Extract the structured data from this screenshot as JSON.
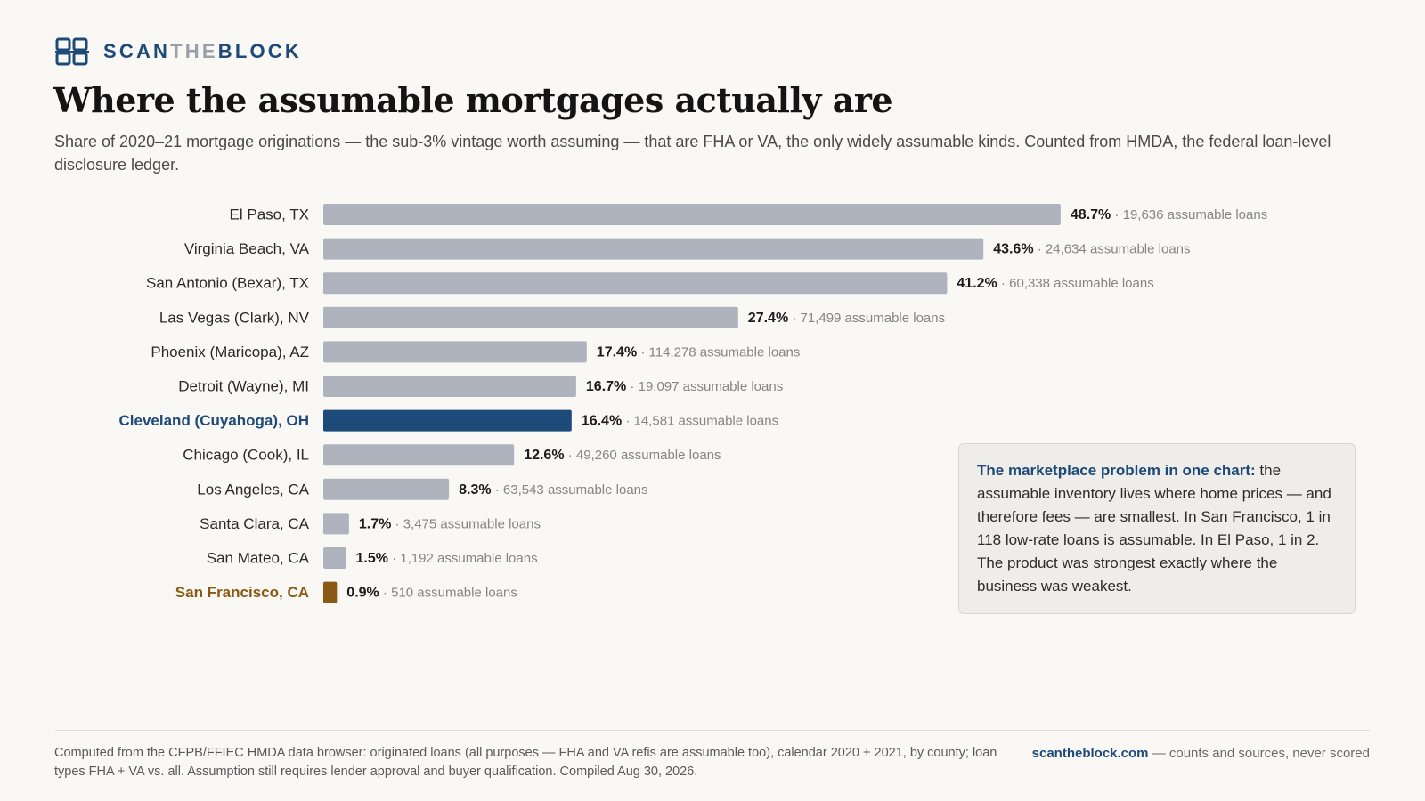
{
  "brand": {
    "part1": "SCAN",
    "part2": "THE",
    "part3": "BLOCK",
    "icon": "grid-logo-icon"
  },
  "header": {
    "title": "Where the assumable mortgages actually are",
    "subtitle": "Share of 2020–21 mortgage originations — the sub-3% vintage worth assuming — that are FHA or VA, the only widely assumable kinds. Counted from HMDA, the federal loan-level disclosure ledger."
  },
  "colors": {
    "bar": "#aeb3bd",
    "highlight_blue": "#1d4a78",
    "highlight_brown": "#8a5a14",
    "background": "#f9f8f5"
  },
  "chart_data": {
    "type": "bar",
    "orientation": "horizontal",
    "categories": [
      "El Paso, TX",
      "Virginia Beach, VA",
      "San Antonio (Bexar), TX",
      "Las Vegas (Clark), NV",
      "Phoenix (Maricopa), AZ",
      "Detroit (Wayne), MI",
      "Cleveland (Cuyahoga), OH",
      "Chicago (Cook), IL",
      "Los Angeles, CA",
      "Santa Clara, CA",
      "San Mateo, CA",
      "San Francisco, CA"
    ],
    "values": [
      48.7,
      43.6,
      41.2,
      27.4,
      17.4,
      16.7,
      16.4,
      12.6,
      8.3,
      1.7,
      1.5,
      0.9
    ],
    "value_labels": [
      "48.7%",
      "43.6%",
      "41.2%",
      "27.4%",
      "17.4%",
      "16.7%",
      "16.4%",
      "12.6%",
      "8.3%",
      "1.7%",
      "1.5%",
      "0.9%"
    ],
    "count_labels": [
      "· 19,636 assumable loans",
      "· 24,634 assumable loans",
      "· 60,338 assumable loans",
      "· 71,499 assumable loans",
      "· 114,278 assumable loans",
      "· 19,097 assumable loans",
      "· 14,581 assumable loans",
      "· 49,260 assumable loans",
      "· 63,543 assumable loans",
      "· 3,475 assumable loans",
      "· 1,192 assumable loans",
      "· 510 assumable loans"
    ],
    "highlights": {
      "Cleveland (Cuyahoga), OH": "#1d4a78",
      "San Francisco, CA": "#8a5a14"
    },
    "unit": "%",
    "xlim": [
      0,
      50
    ],
    "grid": false,
    "legend": "none"
  },
  "callout": {
    "lead": "The marketplace problem in one chart:",
    "text": " the assumable inventory lives where home prices — and therefore fees — are smallest. In San Francisco, 1 in 118 low-rate loans is assumable. In El Paso, 1 in 2. The product was strongest exactly where the business was weakest."
  },
  "footer": {
    "source": "Computed from the CFPB/FFIEC HMDA data browser: originated loans (all purposes — FHA and VA refis are assumable too), calendar 2020 + 2021, by county; loan types FHA + VA vs. all. Assumption still requires lender approval and buyer qualification. Compiled Aug 30, 2026.",
    "site": "scantheblock.com",
    "tagline": " — counts and sources, never scored"
  }
}
